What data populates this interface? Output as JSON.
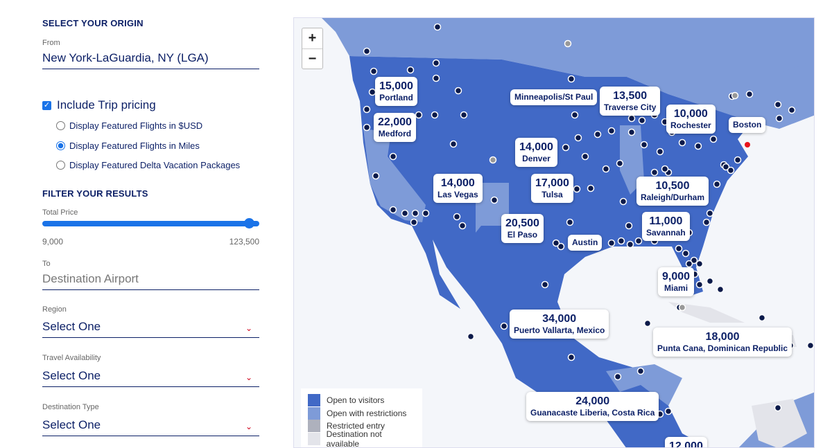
{
  "origin": {
    "heading": "SELECT YOUR ORIGIN",
    "from_label": "From",
    "from_value": "New York-LaGuardia, NY (LGA)"
  },
  "pricing": {
    "include_label": "Include Trip pricing",
    "include_checked": true,
    "options": [
      {
        "label": "Display Featured Flights in $USD",
        "selected": false
      },
      {
        "label": "Display Featured Flights in Miles",
        "selected": true
      },
      {
        "label": "Display Featured Delta Vacation Packages",
        "selected": false
      }
    ]
  },
  "filter": {
    "heading": "FILTER YOUR RESULTS",
    "price_label": "Total Price",
    "price_min": "9,000",
    "price_max": "123,500",
    "slider_fraction": 1.0,
    "to_label": "To",
    "to_placeholder": "Destination Airport",
    "region_label": "Region",
    "region_value": "Select One",
    "availability_label": "Travel Availability",
    "availability_value": "Select One",
    "type_label": "Destination Type",
    "type_value": "Select One"
  },
  "map": {
    "zoom_in": "+",
    "zoom_out": "−",
    "callouts": [
      {
        "price": "15,000",
        "city": "Portland"
      },
      {
        "price": "22,000",
        "city": "Medford"
      },
      {
        "price": "",
        "city": "Minneapolis/St Paul"
      },
      {
        "price": "13,500",
        "city": "Traverse City"
      },
      {
        "price": "10,000",
        "city": "Rochester"
      },
      {
        "price": "",
        "city": "Boston"
      },
      {
        "price": "14,000",
        "city": "Denver"
      },
      {
        "price": "14,000",
        "city": "Las Vegas"
      },
      {
        "price": "17,000",
        "city": "Tulsa"
      },
      {
        "price": "10,500",
        "city": "Raleigh/Durham"
      },
      {
        "price": "11,000",
        "city": "Savannah"
      },
      {
        "price": "20,500",
        "city": "El Paso"
      },
      {
        "price": "",
        "city": "Austin"
      },
      {
        "price": "9,000",
        "city": "Miami"
      },
      {
        "price": "34,000",
        "city": "Puerto Vallarta, Mexico"
      },
      {
        "price": "18,000",
        "city": "Punta Cana, Dominican Republic"
      },
      {
        "price": "24,000",
        "city": "Guanacaste Liberia, Costa Rica"
      },
      {
        "price": "12,000",
        "city": ""
      }
    ],
    "legend": [
      {
        "label": "Open to visitors",
        "color": "#4169c6"
      },
      {
        "label": "Open with restrictions",
        "color": "#7e9bd8"
      },
      {
        "label": "Restricted entry",
        "color": "#aeb1bd"
      },
      {
        "label": "Destination not available",
        "color": "#e3e4ea"
      }
    ]
  }
}
